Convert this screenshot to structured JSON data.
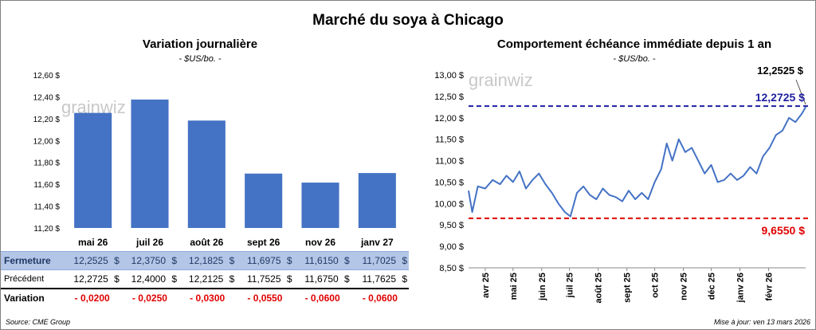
{
  "title": "Marché du soya à Chicago",
  "left": {
    "title": "Variation journalière",
    "subtitle": "- $US/bo. -"
  },
  "right": {
    "title": "Comportement échéance immédiate depuis 1 an",
    "subtitle": "- $US/bo. -",
    "last_label": "12,2525 $",
    "max_label": "12,2725 $",
    "min_label": "9,6550 $"
  },
  "watermark": "grainwiz",
  "table": {
    "close_label": "Fermeture",
    "prev_label": "Précédent",
    "var_label": "Variation",
    "currency": "$",
    "close": [
      "12,2525",
      "12,3750",
      "12,1825",
      "11,6975",
      "11,6150",
      "11,7025"
    ],
    "prev": [
      "12,2725",
      "12,4000",
      "12,2125",
      "11,7525",
      "11,6750",
      "11,7625"
    ],
    "var": [
      "- 0,0200",
      "- 0,0250",
      "- 0,0300",
      "- 0,0550",
      "- 0,0600",
      "- 0,0600"
    ]
  },
  "footer": {
    "source": "Source: CME Group",
    "updated": "Mise à jour: ven 13 mars 2026"
  },
  "colors": {
    "bar": "#4472c4",
    "line": "#4472c4",
    "max": "#1f1fa0",
    "min": "#e00000",
    "table_header": "#b4c6e7"
  },
  "chart_data": [
    {
      "type": "bar",
      "title": "Variation journalière",
      "ylabel": "$US/bo.",
      "categories": [
        "mai 26",
        "juil 26",
        "août 26",
        "sept 26",
        "nov 26",
        "janv 27"
      ],
      "values": [
        12.2525,
        12.375,
        12.1825,
        11.6975,
        11.615,
        11.7025
      ],
      "ylim": [
        11.2,
        12.6
      ],
      "yticks": [
        11.2,
        11.4,
        11.6,
        11.8,
        12.0,
        12.2,
        12.4,
        12.6
      ],
      "ytick_labels": [
        "11,20 $",
        "11,40 $",
        "11,60 $",
        "11,80 $",
        "12,00 $",
        "12,20 $",
        "12,40 $",
        "12,60 $"
      ],
      "grid": false
    },
    {
      "type": "line",
      "title": "Comportement échéance immédiate depuis 1 an",
      "ylabel": "$US/bo.",
      "ylim": [
        8.5,
        13.0
      ],
      "yticks": [
        8.5,
        9.0,
        9.5,
        10.0,
        10.5,
        11.0,
        11.5,
        12.0,
        12.5,
        13.0
      ],
      "ytick_labels": [
        "8,50 $",
        "9,00 $",
        "9,50 $",
        "10,00 $",
        "10,50 $",
        "11,00 $",
        "11,50 $",
        "12,00 $",
        "12,50 $",
        "13,00 $"
      ],
      "xticks": [
        "avr 25",
        "mai 25",
        "juin 25",
        "juil 25",
        "août 25",
        "sept 25",
        "oct 25",
        "nov 25",
        "déc 25",
        "janv 26",
        "févr 26"
      ],
      "x": [
        "2025-03-14",
        "2025-03-18",
        "2025-03-24",
        "2025-04-01",
        "2025-04-09",
        "2025-04-17",
        "2025-04-24",
        "2025-05-01",
        "2025-05-08",
        "2025-05-15",
        "2025-05-22",
        "2025-05-29",
        "2025-06-05",
        "2025-06-12",
        "2025-06-19",
        "2025-06-26",
        "2025-07-02",
        "2025-07-09",
        "2025-07-16",
        "2025-07-23",
        "2025-07-30",
        "2025-08-06",
        "2025-08-13",
        "2025-08-20",
        "2025-08-27",
        "2025-09-03",
        "2025-09-10",
        "2025-09-17",
        "2025-09-24",
        "2025-10-01",
        "2025-10-08",
        "2025-10-14",
        "2025-10-20",
        "2025-10-27",
        "2025-11-03",
        "2025-11-10",
        "2025-11-17",
        "2025-11-24",
        "2025-12-01",
        "2025-12-08",
        "2025-12-15",
        "2025-12-22",
        "2025-12-29",
        "2026-01-05",
        "2026-01-12",
        "2026-01-19",
        "2026-01-26",
        "2026-02-02",
        "2026-02-09",
        "2026-02-16",
        "2026-02-23",
        "2026-03-02",
        "2026-03-09",
        "2026-03-13"
      ],
      "values": [
        10.3,
        9.8,
        10.4,
        10.35,
        10.55,
        10.45,
        10.65,
        10.5,
        10.75,
        10.35,
        10.55,
        10.7,
        10.45,
        10.25,
        10.0,
        9.8,
        9.7,
        10.25,
        10.4,
        10.2,
        10.1,
        10.35,
        10.2,
        10.15,
        10.05,
        10.3,
        10.1,
        10.25,
        10.1,
        10.5,
        10.8,
        11.4,
        11.0,
        11.5,
        11.2,
        11.3,
        11.0,
        10.7,
        10.9,
        10.5,
        10.55,
        10.7,
        10.55,
        10.65,
        10.85,
        10.7,
        11.1,
        11.3,
        11.6,
        11.7,
        12.0,
        11.9,
        12.1,
        12.2525
      ],
      "hlines": [
        {
          "label": "12,2725 $",
          "value": 12.2725,
          "color": "#1f1fa0"
        },
        {
          "label": "9,6550 $",
          "value": 9.655,
          "color": "#e00000"
        }
      ],
      "last_value": 12.2525,
      "grid": false
    }
  ]
}
